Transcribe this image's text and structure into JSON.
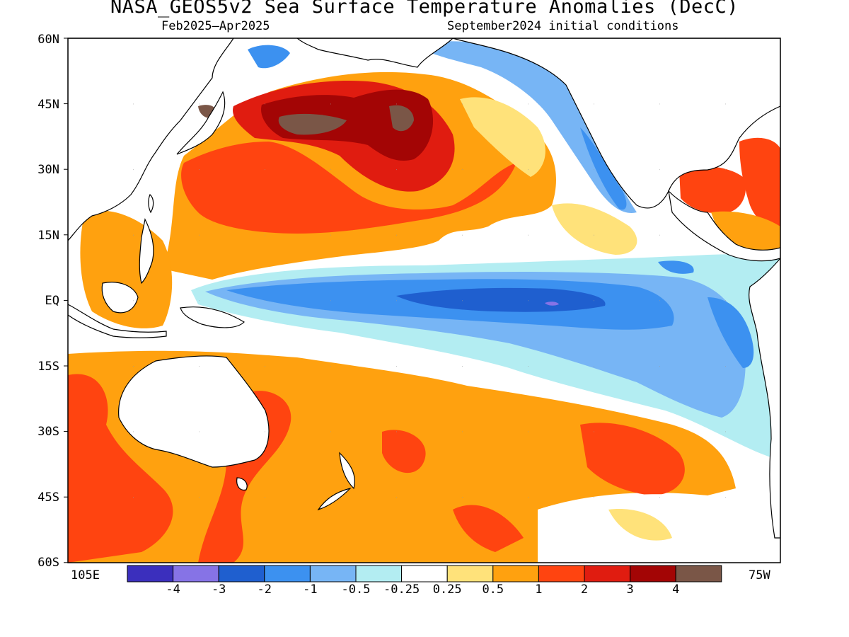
{
  "title": "NASA_GEOS5v2 Sea Surface Temperature Anomalies (DecC)",
  "period": "Feb2025—Apr2025",
  "init": "September2024 initial conditions",
  "lat_labels": [
    "60N",
    "45N",
    "30N",
    "15N",
    "EQ",
    "15S",
    "30S",
    "45S",
    "60S"
  ],
  "lon_labels": {
    "left": "105E",
    "right": "75W"
  },
  "colorbar": {
    "colors": [
      "#3b2fbd",
      "#8673e6",
      "#1f5fcf",
      "#3c91f0",
      "#77b5f5",
      "#b3edf2",
      "#ffffff",
      "#ffe27a",
      "#ffa10f",
      "#ff4410",
      "#e01c10",
      "#a30505",
      "#7a5647"
    ],
    "labels": [
      "-4",
      "-3",
      "-2",
      "-1",
      "-0.5",
      "-0.25",
      "0.25",
      "0.5",
      "1",
      "2",
      "3",
      "4"
    ]
  }
}
